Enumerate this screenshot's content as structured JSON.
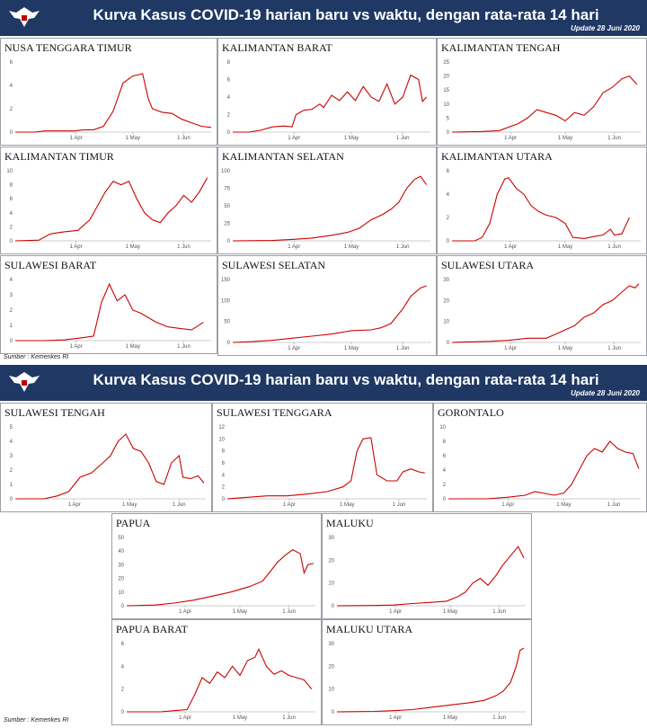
{
  "banners": [
    {
      "title": "Kurva Kasus COVID-19 harian baru vs waktu, dengan rata-rata 14 hari",
      "update": "Update 28 Juni 2020",
      "logo_icon": "garuda-emblem"
    },
    {
      "title": "Kurva Kasus COVID-19 harian baru vs waktu, dengan rata-rata 14 hari",
      "update": "Update 28 Juni 2020",
      "logo_icon": "garuda-emblem"
    }
  ],
  "sources": [
    "Sumber : Kemenkes RI",
    "Sumber : Kemenkes RI"
  ],
  "colors": {
    "banner": "#1f3864",
    "line": "#cc0000",
    "axis": "#bbbbbb"
  },
  "chart_data": [
    {
      "id": "ntt",
      "type": "line",
      "title": "NUSA TENGGARA TIMUR",
      "x_ticks": [
        "1 Apr",
        "1 May",
        "1 Jun"
      ],
      "ylim": [
        0,
        6
      ],
      "y_ticks": [
        0,
        2,
        4,
        6
      ],
      "points": [
        [
          0,
          0
        ],
        [
          5,
          0
        ],
        [
          10,
          0
        ],
        [
          15,
          0.1
        ],
        [
          20,
          0.1
        ],
        [
          25,
          0.1
        ],
        [
          30,
          0.1
        ],
        [
          35,
          0.2
        ],
        [
          40,
          0.2
        ],
        [
          45,
          0.5
        ],
        [
          50,
          1.8
        ],
        [
          55,
          4.2
        ],
        [
          60,
          4.8
        ],
        [
          65,
          5.0
        ],
        [
          68,
          2.8
        ],
        [
          70,
          2
        ],
        [
          75,
          1.7
        ],
        [
          80,
          1.6
        ],
        [
          85,
          1.1
        ],
        [
          90,
          0.8
        ],
        [
          95,
          0.5
        ],
        [
          100,
          0.4
        ]
      ]
    },
    {
      "id": "kalbar",
      "type": "line",
      "title": "KALIMANTAN BARAT",
      "x_ticks": [
        "1 Apr",
        "1 May",
        "1 Jun"
      ],
      "ylim": [
        0,
        8
      ],
      "y_ticks": [
        0,
        2,
        4,
        6,
        8
      ],
      "points": [
        [
          0,
          0
        ],
        [
          8,
          0
        ],
        [
          14,
          0.2
        ],
        [
          20,
          0.6
        ],
        [
          26,
          0.7
        ],
        [
          30,
          0.6
        ],
        [
          32,
          2
        ],
        [
          36,
          2.5
        ],
        [
          40,
          2.6
        ],
        [
          44,
          3.2
        ],
        [
          46,
          2.8
        ],
        [
          50,
          4.2
        ],
        [
          54,
          3.6
        ],
        [
          58,
          4.6
        ],
        [
          62,
          3.6
        ],
        [
          66,
          5.2
        ],
        [
          70,
          4.0
        ],
        [
          74,
          3.5
        ],
        [
          78,
          5.5
        ],
        [
          82,
          3.2
        ],
        [
          86,
          4.0
        ],
        [
          90,
          6.5
        ],
        [
          94,
          6.0
        ],
        [
          96,
          3.5
        ],
        [
          98,
          4.0
        ]
      ]
    },
    {
      "id": "kalteng",
      "type": "line",
      "title": "KALIMANTAN TENGAH",
      "x_ticks": [
        "1 Apr",
        "1 May",
        "1 Jun"
      ],
      "ylim": [
        0,
        25
      ],
      "y_ticks": [
        0,
        5,
        10,
        15,
        20,
        25
      ],
      "points": [
        [
          0,
          0
        ],
        [
          15,
          0.2
        ],
        [
          25,
          0.5
        ],
        [
          35,
          3
        ],
        [
          40,
          5
        ],
        [
          45,
          8
        ],
        [
          50,
          7
        ],
        [
          55,
          6
        ],
        [
          60,
          4
        ],
        [
          65,
          7
        ],
        [
          70,
          6
        ],
        [
          75,
          9
        ],
        [
          80,
          14
        ],
        [
          85,
          16
        ],
        [
          90,
          19
        ],
        [
          94,
          20
        ],
        [
          98,
          17
        ]
      ]
    },
    {
      "id": "kaltim",
      "type": "line",
      "title": "KALIMANTAN TIMUR",
      "x_ticks": [
        "1 Apr",
        "1 May",
        "1 Jun"
      ],
      "ylim": [
        0,
        10
      ],
      "y_ticks": [
        0,
        2,
        4,
        6,
        8,
        10
      ],
      "points": [
        [
          0,
          0
        ],
        [
          12,
          0.1
        ],
        [
          18,
          1
        ],
        [
          25,
          1.3
        ],
        [
          32,
          1.5
        ],
        [
          38,
          3
        ],
        [
          42,
          5
        ],
        [
          46,
          7
        ],
        [
          50,
          8.5
        ],
        [
          54,
          8
        ],
        [
          58,
          8.5
        ],
        [
          62,
          6
        ],
        [
          66,
          4
        ],
        [
          70,
          3
        ],
        [
          74,
          2.6
        ],
        [
          78,
          4
        ],
        [
          82,
          5
        ],
        [
          86,
          6.5
        ],
        [
          90,
          5.5
        ],
        [
          94,
          7
        ],
        [
          98,
          9
        ]
      ]
    },
    {
      "id": "kalsel",
      "type": "line",
      "title": "KALIMANTAN SELATAN",
      "x_ticks": [
        "1 Apr",
        "1 May",
        "1 Jun"
      ],
      "ylim": [
        0,
        100
      ],
      "y_ticks": [
        0,
        25,
        50,
        75,
        100
      ],
      "points": [
        [
          0,
          0
        ],
        [
          20,
          0.5
        ],
        [
          30,
          2
        ],
        [
          40,
          4
        ],
        [
          50,
          8
        ],
        [
          58,
          12
        ],
        [
          64,
          18
        ],
        [
          70,
          30
        ],
        [
          76,
          38
        ],
        [
          80,
          45
        ],
        [
          84,
          55
        ],
        [
          88,
          75
        ],
        [
          92,
          88
        ],
        [
          95,
          92
        ],
        [
          98,
          80
        ]
      ]
    },
    {
      "id": "kaltara",
      "type": "line",
      "title": "KALIMANTAN UTARA",
      "x_ticks": [
        "1 Apr",
        "1 May",
        "1 Jun"
      ],
      "ylim": [
        0,
        6
      ],
      "y_ticks": [
        0,
        2,
        4,
        6
      ],
      "points": [
        [
          0,
          0
        ],
        [
          12,
          0
        ],
        [
          16,
          0.3
        ],
        [
          20,
          1.5
        ],
        [
          24,
          4
        ],
        [
          28,
          5.3
        ],
        [
          30,
          5.4
        ],
        [
          34,
          4.5
        ],
        [
          38,
          4
        ],
        [
          42,
          3
        ],
        [
          46,
          2.5
        ],
        [
          50,
          2.2
        ],
        [
          55,
          2.0
        ],
        [
          60,
          1.5
        ],
        [
          64,
          0.3
        ],
        [
          70,
          0.2
        ],
        [
          76,
          0.4
        ],
        [
          80,
          0.5
        ],
        [
          84,
          1.0
        ],
        [
          86,
          0.5
        ],
        [
          90,
          0.6
        ],
        [
          94,
          2.0
        ]
      ]
    },
    {
      "id": "sulbar",
      "type": "line",
      "title": "SULAWESI BARAT",
      "x_ticks": [
        "1 Apr",
        "1 May",
        "1 Jun"
      ],
      "ylim": [
        0,
        4
      ],
      "y_ticks": [
        0,
        1,
        2,
        3,
        4
      ],
      "points": [
        [
          0,
          0
        ],
        [
          15,
          0
        ],
        [
          25,
          0.05
        ],
        [
          35,
          0.2
        ],
        [
          40,
          0.3
        ],
        [
          44,
          2.5
        ],
        [
          48,
          3.7
        ],
        [
          52,
          2.6
        ],
        [
          56,
          3.0
        ],
        [
          60,
          2.0
        ],
        [
          64,
          1.8
        ],
        [
          68,
          1.5
        ],
        [
          72,
          1.2
        ],
        [
          78,
          0.9
        ],
        [
          84,
          0.8
        ],
        [
          90,
          0.7
        ],
        [
          96,
          1.2
        ]
      ]
    },
    {
      "id": "sulsel",
      "type": "line",
      "title": "SULAWESI SELATAN",
      "x_ticks": [
        "1 Apr",
        "1 May",
        "1 Jun"
      ],
      "ylim": [
        0,
        150
      ],
      "y_ticks": [
        0,
        50,
        100,
        150
      ],
      "points": [
        [
          0,
          0
        ],
        [
          10,
          2
        ],
        [
          20,
          5
        ],
        [
          30,
          10
        ],
        [
          40,
          15
        ],
        [
          50,
          20
        ],
        [
          60,
          28
        ],
        [
          70,
          30
        ],
        [
          75,
          35
        ],
        [
          80,
          45
        ],
        [
          86,
          80
        ],
        [
          90,
          110
        ],
        [
          95,
          130
        ],
        [
          98,
          135
        ]
      ]
    },
    {
      "id": "sulut",
      "type": "line",
      "title": "SULAWESI UTARA",
      "x_ticks": [
        "1 Apr",
        "1 May",
        "1 Jun"
      ],
      "ylim": [
        0,
        30
      ],
      "y_ticks": [
        0,
        10,
        20,
        30
      ],
      "points": [
        [
          0,
          0
        ],
        [
          20,
          0.5
        ],
        [
          30,
          1
        ],
        [
          40,
          2
        ],
        [
          50,
          2
        ],
        [
          55,
          4
        ],
        [
          60,
          6
        ],
        [
          65,
          8
        ],
        [
          70,
          12
        ],
        [
          75,
          14
        ],
        [
          80,
          18
        ],
        [
          85,
          20
        ],
        [
          90,
          24
        ],
        [
          94,
          27
        ],
        [
          97,
          26
        ],
        [
          99,
          28
        ]
      ]
    },
    {
      "id": "sulteng",
      "type": "line",
      "title": "SULAWESI TENGAH",
      "x_ticks": [
        "1 Apr",
        "1 May",
        "1 Jun"
      ],
      "ylim": [
        0,
        5
      ],
      "y_ticks": [
        0,
        1,
        2,
        3,
        4,
        5
      ],
      "points": [
        [
          0,
          0
        ],
        [
          15,
          0
        ],
        [
          22,
          0.2
        ],
        [
          28,
          0.5
        ],
        [
          34,
          1.5
        ],
        [
          40,
          1.8
        ],
        [
          46,
          2.5
        ],
        [
          50,
          3.0
        ],
        [
          54,
          4
        ],
        [
          58,
          4.5
        ],
        [
          62,
          3.5
        ],
        [
          66,
          3.3
        ],
        [
          70,
          2.5
        ],
        [
          74,
          1.2
        ],
        [
          78,
          1
        ],
        [
          82,
          2.5
        ],
        [
          86,
          3
        ],
        [
          88,
          1.5
        ],
        [
          92,
          1.4
        ],
        [
          96,
          1.6
        ],
        [
          99,
          1.1
        ]
      ]
    },
    {
      "id": "sultra",
      "type": "line",
      "title": "SULAWESI TENGGARA",
      "x_ticks": [
        "1 Apr",
        "1 May",
        "1 Jun"
      ],
      "ylim": [
        0,
        12
      ],
      "y_ticks": [
        0,
        2,
        4,
        6,
        8,
        10,
        12
      ],
      "points": [
        [
          0,
          0
        ],
        [
          20,
          0.5
        ],
        [
          30,
          0.5
        ],
        [
          40,
          0.8
        ],
        [
          50,
          1.2
        ],
        [
          58,
          2
        ],
        [
          62,
          3
        ],
        [
          65,
          8
        ],
        [
          68,
          10
        ],
        [
          72,
          10.2
        ],
        [
          75,
          4
        ],
        [
          80,
          3
        ],
        [
          85,
          3
        ],
        [
          88,
          4.5
        ],
        [
          92,
          5
        ],
        [
          96,
          4.5
        ],
        [
          99,
          4.3
        ]
      ]
    },
    {
      "id": "gorontalo",
      "type": "line",
      "title": "GORONTALO",
      "x_ticks": [
        "1 Apr",
        "1 May",
        "1 Jun"
      ],
      "ylim": [
        0,
        10
      ],
      "y_ticks": [
        0,
        2,
        4,
        6,
        8,
        10
      ],
      "points": [
        [
          0,
          0
        ],
        [
          20,
          0
        ],
        [
          30,
          0.2
        ],
        [
          40,
          0.5
        ],
        [
          45,
          1
        ],
        [
          55,
          0.5
        ],
        [
          60,
          0.8
        ],
        [
          64,
          2
        ],
        [
          68,
          4
        ],
        [
          72,
          6
        ],
        [
          76,
          7
        ],
        [
          80,
          6.5
        ],
        [
          84,
          8
        ],
        [
          88,
          7
        ],
        [
          92,
          6.5
        ],
        [
          96,
          6.3
        ],
        [
          99,
          4.2
        ]
      ]
    },
    {
      "id": "papua",
      "type": "line",
      "title": "PAPUA",
      "x_ticks": [
        "1 Apr",
        "1 May",
        "1 Jun"
      ],
      "ylim": [
        0,
        50
      ],
      "y_ticks": [
        0,
        10,
        20,
        30,
        40,
        50
      ],
      "points": [
        [
          0,
          0
        ],
        [
          15,
          0.5
        ],
        [
          25,
          2
        ],
        [
          35,
          4
        ],
        [
          45,
          7
        ],
        [
          55,
          10
        ],
        [
          65,
          14
        ],
        [
          72,
          18
        ],
        [
          76,
          25
        ],
        [
          80,
          32
        ],
        [
          84,
          37
        ],
        [
          88,
          41
        ],
        [
          92,
          38
        ],
        [
          94,
          24
        ],
        [
          96,
          30
        ],
        [
          99,
          31
        ]
      ]
    },
    {
      "id": "maluku",
      "type": "line",
      "title": "MALUKU",
      "x_ticks": [
        "1 Apr",
        "1 May",
        "1 Jun"
      ],
      "ylim": [
        0,
        30
      ],
      "y_ticks": [
        0,
        10,
        20,
        30
      ],
      "points": [
        [
          0,
          0
        ],
        [
          20,
          0.1
        ],
        [
          30,
          0.3
        ],
        [
          40,
          1
        ],
        [
          50,
          1.5
        ],
        [
          58,
          2
        ],
        [
          64,
          4
        ],
        [
          68,
          6
        ],
        [
          72,
          10
        ],
        [
          76,
          12
        ],
        [
          80,
          9
        ],
        [
          84,
          13
        ],
        [
          88,
          18
        ],
        [
          92,
          22
        ],
        [
          96,
          26
        ],
        [
          99,
          21
        ]
      ]
    },
    {
      "id": "papuabarat",
      "type": "line",
      "title": "PAPUA BARAT",
      "x_ticks": [
        "1 Apr",
        "1 May",
        "1 Jun"
      ],
      "ylim": [
        0,
        6
      ],
      "y_ticks": [
        0,
        2,
        4,
        6
      ],
      "points": [
        [
          0,
          0
        ],
        [
          18,
          0
        ],
        [
          25,
          0.1
        ],
        [
          32,
          0.2
        ],
        [
          36,
          1.5
        ],
        [
          40,
          3
        ],
        [
          44,
          2.5
        ],
        [
          48,
          3.5
        ],
        [
          52,
          3
        ],
        [
          56,
          4
        ],
        [
          60,
          3.2
        ],
        [
          64,
          4.5
        ],
        [
          68,
          4.8
        ],
        [
          70,
          5.5
        ],
        [
          74,
          4.0
        ],
        [
          78,
          3.3
        ],
        [
          82,
          3.6
        ],
        [
          86,
          3.2
        ],
        [
          90,
          3.0
        ],
        [
          94,
          2.8
        ],
        [
          98,
          2.0
        ]
      ]
    },
    {
      "id": "malut",
      "type": "line",
      "title": "MALUKU UTARA",
      "x_ticks": [
        "1 Apr",
        "1 May",
        "1 Jun"
      ],
      "ylim": [
        0,
        30
      ],
      "y_ticks": [
        0,
        10,
        20,
        30
      ],
      "points": [
        [
          0,
          0
        ],
        [
          20,
          0.2
        ],
        [
          30,
          0.5
        ],
        [
          40,
          1
        ],
        [
          50,
          2
        ],
        [
          60,
          3
        ],
        [
          70,
          4
        ],
        [
          78,
          5
        ],
        [
          84,
          7
        ],
        [
          88,
          9
        ],
        [
          92,
          13
        ],
        [
          95,
          20
        ],
        [
          97,
          27
        ],
        [
          99,
          28
        ]
      ]
    }
  ]
}
